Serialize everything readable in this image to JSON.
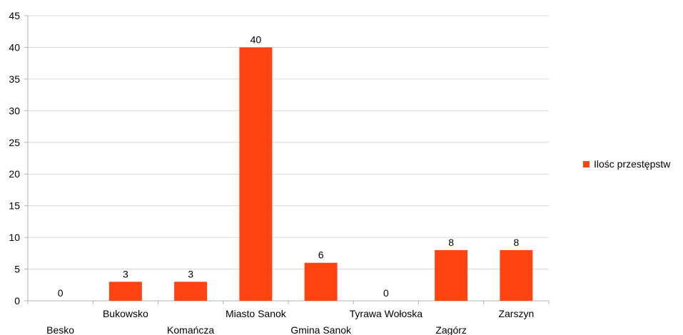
{
  "chart_data": {
    "type": "bar",
    "title": "",
    "xlabel": "",
    "ylabel": "",
    "ylim": [
      0,
      45
    ],
    "ytick_step": 5,
    "grid": true,
    "legend_position": "right",
    "bar_color": "#ff4411",
    "categories": [
      "Besko",
      "Bukowsko",
      "Komańcza",
      "Miasto Sanok",
      "Gmina Sanok",
      "Tyrawa Wołoska",
      "Zagórz",
      "Zarszyn"
    ],
    "series": [
      {
        "name": "Ilośc przestępstw",
        "values": [
          0,
          3,
          3,
          40,
          6,
          0,
          8,
          8
        ]
      }
    ],
    "data_labels": [
      "0",
      "3",
      "3",
      "40",
      "6",
      "0",
      "8",
      "8"
    ],
    "yticks": [
      "0",
      "5",
      "10",
      "15",
      "20",
      "25",
      "30",
      "35",
      "40",
      "45"
    ]
  }
}
